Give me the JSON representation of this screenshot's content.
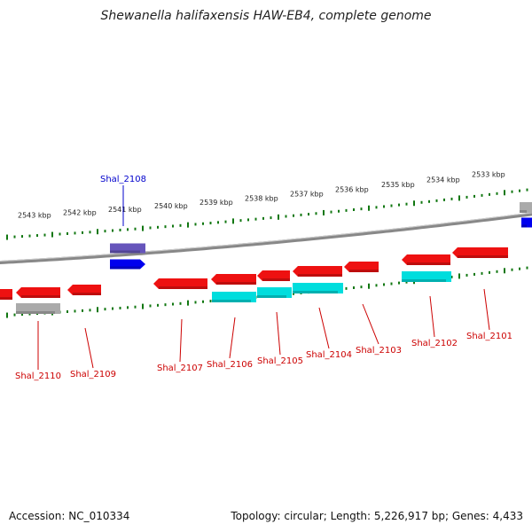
{
  "title": "Shewanella halifaxensis HAW-EB4, complete genome",
  "footer": {
    "accession": "Accession: NC_010334",
    "stats": "Topology: circular; Length: 5,226,917 bp; Genes: 4,433"
  },
  "colors": {
    "cds": "#ee1111",
    "rna": "#00dddd",
    "pseudo": "#aaaaaa",
    "highlight": "#0000ee",
    "highlight_rna": "#6655bb",
    "tick": "#117711",
    "backbone": "#888888",
    "label_red": "#cc0000",
    "label_blue": "#0000cc"
  },
  "kbp_ticks": [
    "2543 kbp",
    "2542 kbp",
    "2541 kbp",
    "2540 kbp",
    "2539 kbp",
    "2538 kbp",
    "2537 kbp",
    "2536 kbp",
    "2535 kbp",
    "2534 kbp",
    "2533 kbp"
  ],
  "genes": [
    {
      "label": "Shal_2110"
    },
    {
      "label": "Shal_2109"
    },
    {
      "label": "Shal_2108"
    },
    {
      "label": "Shal_2107"
    },
    {
      "label": "Shal_2106"
    },
    {
      "label": "Shal_2105"
    },
    {
      "label": "Shal_2104"
    },
    {
      "label": "Shal_2103"
    },
    {
      "label": "Shal_2102"
    },
    {
      "label": "Shal_2101"
    }
  ]
}
